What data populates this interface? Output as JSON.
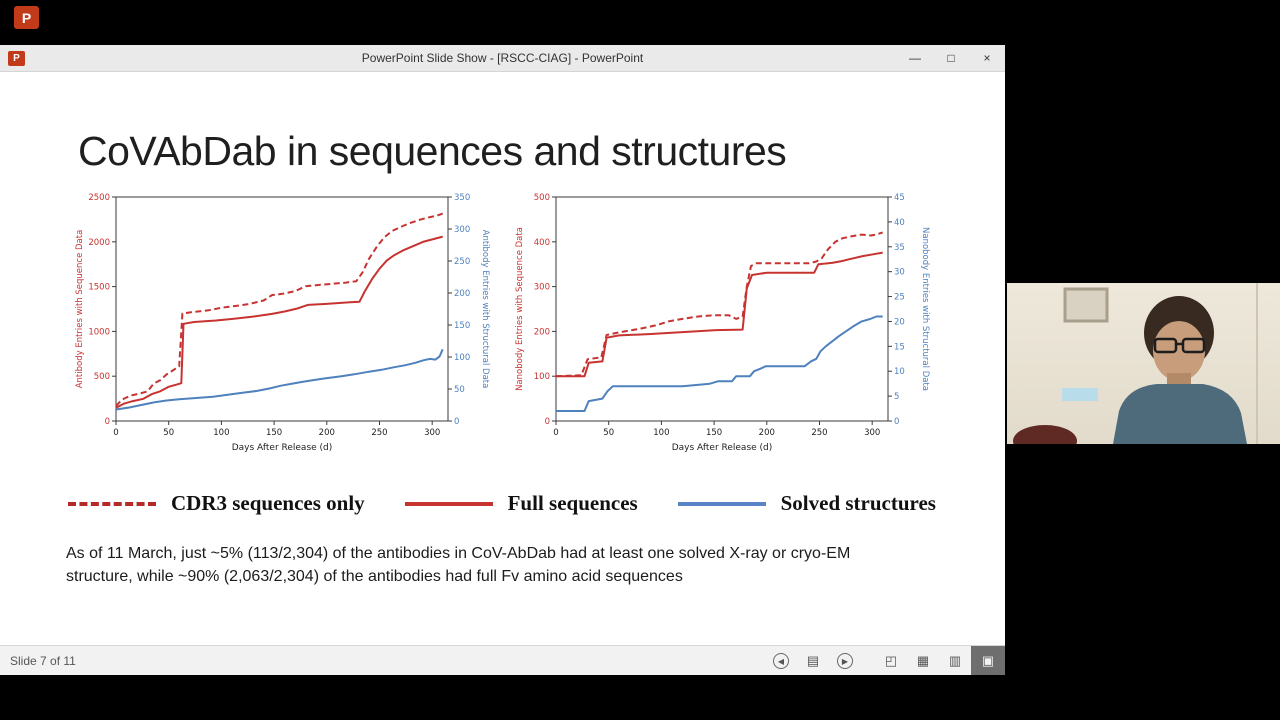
{
  "topbar": {
    "logo_letter": "P"
  },
  "window": {
    "title": "PowerPoint Slide Show - [RSCC-CIAG] - PowerPoint",
    "icon_letter": "P",
    "controls": {
      "minimize": "—",
      "maximize": "□",
      "close": "×"
    }
  },
  "slide": {
    "title": "CoVAbDab in sequences and structures",
    "legend": [
      {
        "label": "CDR3 sequences only",
        "style": "dashed",
        "color": "#b52a28"
      },
      {
        "label": "Full sequences",
        "style": "solid",
        "color": "#c63331"
      },
      {
        "label": "Solved structures",
        "style": "solid",
        "color": "#5b84c8"
      }
    ],
    "body_lines": [
      "As of 11 March, just ~5% (113/2,304) of the antibodies in CoV-AbDab had at least one solved X-ray or cryo-EM",
      "structure, while ~90% (2,063/2,304) of the antibodies had full Fv amino acid sequences"
    ]
  },
  "status_bar": {
    "slide_indicator": "Slide 7 of 11",
    "icons": {
      "previous": "◀",
      "menu": "▤",
      "next": "▶",
      "normal_view": "◰",
      "slide_sorter": "▦",
      "reading_view": "▥",
      "slideshow_view": "▣"
    }
  },
  "chart_data": [
    {
      "type": "line",
      "title": "",
      "xlabel": "Days After Release (d)",
      "x_range": [
        0,
        315
      ],
      "x_ticks": [
        0,
        50,
        100,
        150,
        200,
        250,
        300
      ],
      "left_axis": {
        "label": "Antibody Entries with Sequence Data",
        "range": [
          0,
          2500
        ],
        "ticks": [
          0,
          500,
          1000,
          1500,
          2000,
          2500
        ],
        "color": "#c63331"
      },
      "right_axis": {
        "label": "Antibody Entries with Structural Data",
        "range": [
          0,
          350
        ],
        "ticks": [
          0,
          50,
          100,
          150,
          200,
          250,
          300,
          350
        ],
        "color": "#4f81bd"
      },
      "series": [
        {
          "name": "CDR3 sequences only",
          "axis": "left",
          "style": "dashed",
          "color": "#c63331",
          "points": [
            [
              0,
              170
            ],
            [
              6,
              240
            ],
            [
              14,
              285
            ],
            [
              22,
              305
            ],
            [
              30,
              330
            ],
            [
              36,
              420
            ],
            [
              42,
              455
            ],
            [
              48,
              520
            ],
            [
              54,
              565
            ],
            [
              60,
              610
            ],
            [
              63,
              1200
            ],
            [
              72,
              1215
            ],
            [
              88,
              1235
            ],
            [
              100,
              1265
            ],
            [
              114,
              1285
            ],
            [
              126,
              1305
            ],
            [
              140,
              1345
            ],
            [
              148,
              1405
            ],
            [
              158,
              1420
            ],
            [
              170,
              1450
            ],
            [
              180,
              1505
            ],
            [
              194,
              1520
            ],
            [
              206,
              1532
            ],
            [
              218,
              1545
            ],
            [
              228,
              1560
            ],
            [
              234,
              1660
            ],
            [
              240,
              1810
            ],
            [
              248,
              1955
            ],
            [
              255,
              2055
            ],
            [
              262,
              2120
            ],
            [
              270,
              2165
            ],
            [
              278,
              2205
            ],
            [
              288,
              2245
            ],
            [
              296,
              2270
            ],
            [
              305,
              2295
            ],
            [
              310,
              2315
            ]
          ]
        },
        {
          "name": "Full sequences",
          "axis": "left",
          "style": "solid",
          "color": "#c63331",
          "points": [
            [
              0,
              148
            ],
            [
              8,
              195
            ],
            [
              16,
              222
            ],
            [
              26,
              248
            ],
            [
              34,
              300
            ],
            [
              42,
              332
            ],
            [
              50,
              382
            ],
            [
              58,
              408
            ],
            [
              62,
              422
            ],
            [
              64,
              1085
            ],
            [
              74,
              1105
            ],
            [
              95,
              1122
            ],
            [
              112,
              1142
            ],
            [
              130,
              1165
            ],
            [
              148,
              1195
            ],
            [
              160,
              1222
            ],
            [
              172,
              1256
            ],
            [
              182,
              1296
            ],
            [
              198,
              1306
            ],
            [
              210,
              1316
            ],
            [
              222,
              1326
            ],
            [
              231,
              1332
            ],
            [
              236,
              1445
            ],
            [
              243,
              1585
            ],
            [
              250,
              1700
            ],
            [
              257,
              1792
            ],
            [
              264,
              1850
            ],
            [
              272,
              1902
            ],
            [
              282,
              1952
            ],
            [
              292,
              2002
            ],
            [
              302,
              2032
            ],
            [
              310,
              2058
            ]
          ]
        },
        {
          "name": "Solved structures",
          "axis": "right",
          "style": "solid",
          "color": "#4f81bd",
          "points": [
            [
              0,
              18
            ],
            [
              12,
              21
            ],
            [
              24,
              25
            ],
            [
              36,
              29
            ],
            [
              48,
              32
            ],
            [
              60,
              34
            ],
            [
              76,
              36
            ],
            [
              92,
              38
            ],
            [
              106,
              41
            ],
            [
              120,
              44
            ],
            [
              134,
              47
            ],
            [
              146,
              51
            ],
            [
              156,
              55
            ],
            [
              166,
              58
            ],
            [
              176,
              61
            ],
            [
              188,
              64
            ],
            [
              200,
              67
            ],
            [
              214,
              70
            ],
            [
              226,
              73
            ],
            [
              240,
              77
            ],
            [
              252,
              80
            ],
            [
              264,
              84
            ],
            [
              274,
              87
            ],
            [
              284,
              91
            ],
            [
              292,
              95
            ],
            [
              298,
              97
            ],
            [
              303,
              96
            ],
            [
              307,
              101
            ],
            [
              310,
              112
            ]
          ]
        }
      ]
    },
    {
      "type": "line",
      "title": "",
      "xlabel": "Days After Release (d)",
      "x_range": [
        0,
        315
      ],
      "x_ticks": [
        0,
        50,
        100,
        150,
        200,
        250,
        300
      ],
      "left_axis": {
        "label": "Nanobody Entries with Sequence Data",
        "range": [
          0,
          500
        ],
        "ticks": [
          0,
          100,
          200,
          300,
          400,
          500
        ],
        "color": "#c63331"
      },
      "right_axis": {
        "label": "Nanobody Entries with Structural Data",
        "range": [
          0,
          45
        ],
        "ticks": [
          0,
          5,
          10,
          15,
          20,
          25,
          30,
          35,
          40,
          45
        ],
        "color": "#4f81bd"
      },
      "series": [
        {
          "name": "CDR3 sequences only",
          "axis": "left",
          "style": "dashed",
          "color": "#c63331",
          "points": [
            [
              0,
              100
            ],
            [
              24,
              102
            ],
            [
              30,
              138
            ],
            [
              43,
              142
            ],
            [
              48,
              192
            ],
            [
              60,
              198
            ],
            [
              80,
              206
            ],
            [
              96,
              214
            ],
            [
              106,
              222
            ],
            [
              120,
              228
            ],
            [
              134,
              233
            ],
            [
              148,
              236
            ],
            [
              164,
              236
            ],
            [
              171,
              228
            ],
            [
              177,
              233
            ],
            [
              181,
              300
            ],
            [
              185,
              346
            ],
            [
              190,
              352
            ],
            [
              214,
              352
            ],
            [
              240,
              352
            ],
            [
              247,
              356
            ],
            [
              252,
              363
            ],
            [
              258,
              383
            ],
            [
              265,
              400
            ],
            [
              272,
              408
            ],
            [
              280,
              412
            ],
            [
              290,
              416
            ],
            [
              299,
              414
            ],
            [
              305,
              417
            ],
            [
              310,
              421
            ]
          ]
        },
        {
          "name": "Full sequences",
          "axis": "left",
          "style": "solid",
          "color": "#c63331",
          "points": [
            [
              0,
              100
            ],
            [
              27,
              100
            ],
            [
              31,
              130
            ],
            [
              44,
              133
            ],
            [
              48,
              186
            ],
            [
              60,
              191
            ],
            [
              88,
              194
            ],
            [
              110,
              197
            ],
            [
              132,
              200
            ],
            [
              152,
              203
            ],
            [
              177,
              204
            ],
            [
              181,
              296
            ],
            [
              186,
              326
            ],
            [
              200,
              331
            ],
            [
              228,
              331
            ],
            [
              245,
              331
            ],
            [
              249,
              350
            ],
            [
              262,
              353
            ],
            [
              271,
              357
            ],
            [
              280,
              362
            ],
            [
              291,
              368
            ],
            [
              301,
              372
            ],
            [
              310,
              376
            ]
          ]
        },
        {
          "name": "Solved structures",
          "axis": "right",
          "style": "solid",
          "color": "#4f81bd",
          "points": [
            [
              0,
              2
            ],
            [
              27,
              2
            ],
            [
              31,
              4
            ],
            [
              44,
              4.5
            ],
            [
              49,
              6
            ],
            [
              54,
              7
            ],
            [
              88,
              7
            ],
            [
              120,
              7
            ],
            [
              146,
              7.5
            ],
            [
              154,
              8
            ],
            [
              167,
              8
            ],
            [
              171,
              9
            ],
            [
              184,
              9
            ],
            [
              188,
              10
            ],
            [
              194,
              10.5
            ],
            [
              199,
              11
            ],
            [
              236,
              11
            ],
            [
              242,
              12
            ],
            [
              247,
              12.5
            ],
            [
              251,
              14
            ],
            [
              256,
              15
            ],
            [
              262,
              16
            ],
            [
              268,
              17
            ],
            [
              275,
              18
            ],
            [
              282,
              19
            ],
            [
              290,
              20
            ],
            [
              298,
              20.5
            ],
            [
              304,
              21
            ],
            [
              310,
              21
            ]
          ]
        }
      ]
    }
  ]
}
